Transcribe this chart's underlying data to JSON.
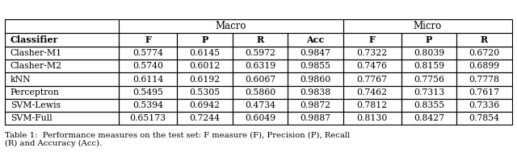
{
  "title": "Table 1:  Performance measures on the test set: F measure (F), Precision (P), Recall\n(R) and Accuracy (Acc).",
  "macro_header": "Macro",
  "micro_header": "Micro",
  "col_headers": [
    "Classifier",
    "F",
    "P",
    "R",
    "Acc",
    "F",
    "P",
    "R"
  ],
  "rows": [
    [
      "Clasher-M1",
      "0.5774",
      "0.6145",
      "0.5972",
      "0.9847",
      "0.7322",
      "0.8039",
      "0.6720"
    ],
    [
      "Clasher-M2",
      "0.5740",
      "0.6012",
      "0.6319",
      "0.9855",
      "0.7476",
      "0.8159",
      "0.6899"
    ],
    [
      "kNN",
      "0.6114",
      "0.6192",
      "0.6067",
      "0.9860",
      "0.7767",
      "0.7756",
      "0.7778"
    ],
    [
      "Perceptron",
      "0.5495",
      "0.5305",
      "0.5860",
      "0.9838",
      "0.7462",
      "0.7313",
      "0.7617"
    ],
    [
      "SVM-Lewis",
      "0.5394",
      "0.6942",
      "0.4734",
      "0.9872",
      "0.7812",
      "0.8355",
      "0.7336"
    ],
    [
      "SVM-Full",
      "0.65173",
      "0.7244",
      "0.6049",
      "0.9887",
      "0.8130",
      "0.8427",
      "0.7854"
    ]
  ],
  "bg_color": "#f0f0f0",
  "figsize": [
    6.4,
    1.99
  ],
  "dpi": 100
}
